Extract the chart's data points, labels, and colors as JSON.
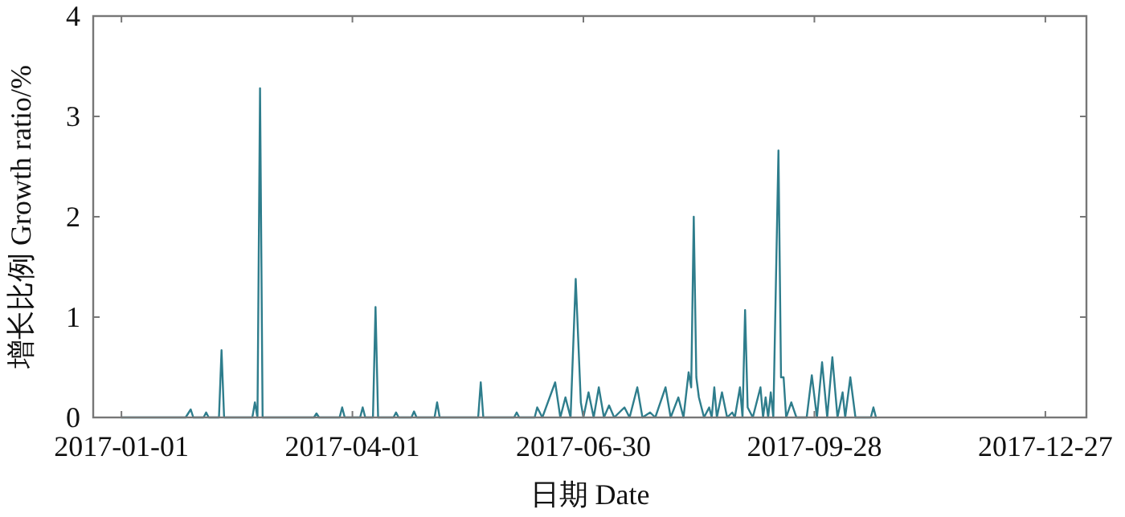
{
  "chart_data": {
    "type": "line",
    "xlabel": "日期 Date",
    "ylabel": "增长比例 Growth ratio/%",
    "xlim": [
      "2016-12-21",
      "2018-01-12"
    ],
    "ylim": [
      0,
      4
    ],
    "xticks": [
      "2017-01-01",
      "2017-04-01",
      "2017-06-30",
      "2017-09-28",
      "2017-12-27"
    ],
    "yticks": [
      0,
      1,
      2,
      3,
      4
    ],
    "grid": false,
    "marker": "none",
    "line_style": "solid",
    "series": [
      {
        "color": "#2e7d8c",
        "x": [
          "2017-01-01",
          "2017-01-26",
          "2017-01-28",
          "2017-01-29",
          "2017-02-02",
          "2017-02-03",
          "2017-02-04",
          "2017-02-08",
          "2017-02-09",
          "2017-02-10",
          "2017-02-21",
          "2017-02-22",
          "2017-02-23",
          "2017-02-24",
          "2017-02-25",
          "2017-03-17",
          "2017-03-18",
          "2017-03-19",
          "2017-03-27",
          "2017-03-28",
          "2017-03-29",
          "2017-04-04",
          "2017-04-05",
          "2017-04-06",
          "2017-04-09",
          "2017-04-10",
          "2017-04-11",
          "2017-04-17",
          "2017-04-18",
          "2017-04-19",
          "2017-04-24",
          "2017-04-25",
          "2017-04-26",
          "2017-05-03",
          "2017-05-04",
          "2017-05-05",
          "2017-05-20",
          "2017-05-21",
          "2017-05-22",
          "2017-06-03",
          "2017-06-04",
          "2017-06-05",
          "2017-06-11",
          "2017-06-12",
          "2017-06-14",
          "2017-06-19",
          "2017-06-21",
          "2017-06-23",
          "2017-06-25",
          "2017-06-27",
          "2017-06-29",
          "2017-06-30",
          "2017-07-02",
          "2017-07-04",
          "2017-07-06",
          "2017-07-08",
          "2017-07-10",
          "2017-07-12",
          "2017-07-16",
          "2017-07-18",
          "2017-07-21",
          "2017-07-23",
          "2017-07-26",
          "2017-07-28",
          "2017-08-01",
          "2017-08-03",
          "2017-08-06",
          "2017-08-08",
          "2017-08-10",
          "2017-08-11",
          "2017-08-12",
          "2017-08-13",
          "2017-08-14",
          "2017-08-16",
          "2017-08-18",
          "2017-08-19",
          "2017-08-20",
          "2017-08-21",
          "2017-08-23",
          "2017-08-25",
          "2017-08-27",
          "2017-08-28",
          "2017-08-30",
          "2017-08-31",
          "2017-09-01",
          "2017-09-02",
          "2017-09-04",
          "2017-09-07",
          "2017-09-08",
          "2017-09-09",
          "2017-09-10",
          "2017-09-11",
          "2017-09-12",
          "2017-09-14",
          "2017-09-15",
          "2017-09-16",
          "2017-09-17",
          "2017-09-19",
          "2017-09-21",
          "2017-09-25",
          "2017-09-27",
          "2017-09-29",
          "2017-10-01",
          "2017-10-03",
          "2017-10-05",
          "2017-10-07",
          "2017-10-09",
          "2017-10-10",
          "2017-10-12",
          "2017-10-14",
          "2017-10-20",
          "2017-10-21",
          "2017-10-22"
        ],
        "values": [
          0,
          0,
          0.08,
          0,
          0,
          0.05,
          0,
          0,
          0.67,
          0,
          0,
          0.15,
          0,
          3.28,
          0,
          0,
          0.04,
          0,
          0,
          0.1,
          0,
          0,
          0.1,
          0,
          0,
          1.1,
          0,
          0,
          0.05,
          0,
          0,
          0.06,
          0,
          0,
          0.15,
          0,
          0,
          0.35,
          0,
          0,
          0.05,
          0,
          0,
          0.1,
          0,
          0.35,
          0,
          0.2,
          0,
          1.38,
          0.15,
          0,
          0.25,
          0,
          0.3,
          0,
          0.12,
          0,
          0.1,
          0,
          0.3,
          0,
          0.05,
          0,
          0.3,
          0,
          0.2,
          0,
          0.45,
          0.3,
          2.0,
          0.4,
          0.2,
          0,
          0.1,
          0,
          0.3,
          0,
          0.25,
          0,
          0.05,
          0,
          0.3,
          0,
          1.07,
          0.1,
          0,
          0.3,
          0,
          0.2,
          0,
          0.25,
          0,
          2.66,
          0.4,
          0.4,
          0,
          0.15,
          0,
          0,
          0.42,
          0,
          0.55,
          0,
          0.6,
          0,
          0.25,
          0,
          0.4,
          0,
          0,
          0.1,
          0
        ]
      }
    ]
  }
}
